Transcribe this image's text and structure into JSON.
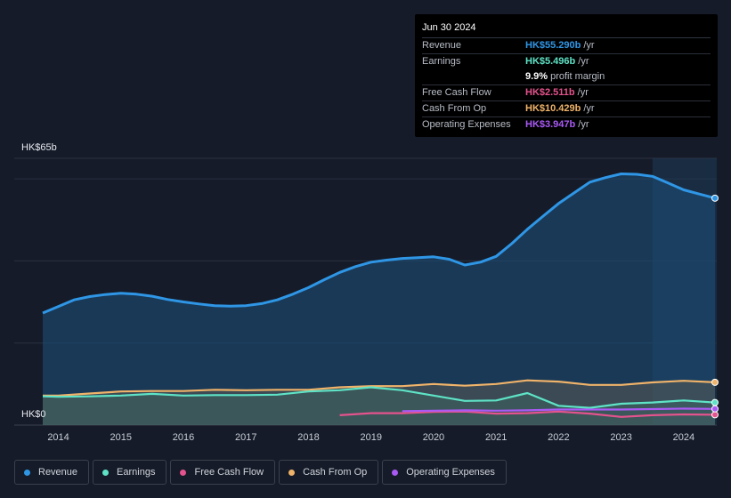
{
  "tooltip": {
    "date": "Jun 30 2024",
    "rows": [
      {
        "label": "Revenue",
        "value": "HK$55.290b",
        "unit": "/yr",
        "color": "#2f96e6"
      },
      {
        "label": "Earnings",
        "value": "HK$5.496b",
        "unit": "/yr",
        "color": "#5ee3c6"
      },
      {
        "margin_value": "9.9%",
        "margin_label": "profit margin"
      },
      {
        "label": "Free Cash Flow",
        "value": "HK$2.511b",
        "unit": "/yr",
        "color": "#e4538d"
      },
      {
        "label": "Cash From Op",
        "value": "HK$10.429b",
        "unit": "/yr",
        "color": "#f0b36a"
      },
      {
        "label": "Operating Expenses",
        "value": "HK$3.947b",
        "unit": "/yr",
        "color": "#a95af5"
      }
    ]
  },
  "legend": [
    {
      "label": "Revenue",
      "color": "#2f96e6"
    },
    {
      "label": "Earnings",
      "color": "#5ee3c6"
    },
    {
      "label": "Free Cash Flow",
      "color": "#e4538d"
    },
    {
      "label": "Cash From Op",
      "color": "#f0b36a"
    },
    {
      "label": "Operating Expenses",
      "color": "#a95af5"
    }
  ],
  "chart_data": {
    "type": "area",
    "ylabel_top": "HK$65b",
    "ylabel_bottom": "HK$0",
    "ylim": [
      0,
      65
    ],
    "xlim": [
      2013.75,
      2024.5
    ],
    "x_ticks": [
      "2014",
      "2015",
      "2016",
      "2017",
      "2018",
      "2019",
      "2020",
      "2021",
      "2022",
      "2023",
      "2024"
    ],
    "highlight_start": 2023.5,
    "series": [
      {
        "name": "Revenue",
        "color": "#2f96e6",
        "points": [
          [
            2013.75,
            27.3
          ],
          [
            2014.0,
            28.9
          ],
          [
            2014.25,
            30.5
          ],
          [
            2014.5,
            31.3
          ],
          [
            2014.75,
            31.8
          ],
          [
            2015.0,
            32.1
          ],
          [
            2015.25,
            31.9
          ],
          [
            2015.5,
            31.4
          ],
          [
            2015.75,
            30.6
          ],
          [
            2016.0,
            30.0
          ],
          [
            2016.25,
            29.5
          ],
          [
            2016.5,
            29.1
          ],
          [
            2016.75,
            29.0
          ],
          [
            2017.0,
            29.1
          ],
          [
            2017.25,
            29.6
          ],
          [
            2017.5,
            30.5
          ],
          [
            2017.75,
            31.9
          ],
          [
            2018.0,
            33.5
          ],
          [
            2018.25,
            35.4
          ],
          [
            2018.5,
            37.2
          ],
          [
            2018.75,
            38.6
          ],
          [
            2019.0,
            39.7
          ],
          [
            2019.25,
            40.2
          ],
          [
            2019.5,
            40.6
          ],
          [
            2019.75,
            40.8
          ],
          [
            2020.0,
            41.0
          ],
          [
            2020.25,
            40.4
          ],
          [
            2020.5,
            39.0
          ],
          [
            2020.75,
            39.7
          ],
          [
            2021.0,
            41.1
          ],
          [
            2021.25,
            44.2
          ],
          [
            2021.5,
            47.7
          ],
          [
            2021.75,
            50.9
          ],
          [
            2022.0,
            54.0
          ],
          [
            2022.25,
            56.6
          ],
          [
            2022.5,
            59.2
          ],
          [
            2022.75,
            60.3
          ],
          [
            2023.0,
            61.2
          ],
          [
            2023.25,
            61.1
          ],
          [
            2023.5,
            60.6
          ],
          [
            2023.75,
            59.0
          ],
          [
            2024.0,
            57.3
          ],
          [
            2024.25,
            56.3
          ],
          [
            2024.5,
            55.29
          ]
        ]
      },
      {
        "name": "Cash From Op",
        "color": "#f0b36a",
        "points": [
          [
            2013.75,
            7.2
          ],
          [
            2014.0,
            7.2
          ],
          [
            2014.5,
            7.7
          ],
          [
            2015.0,
            8.2
          ],
          [
            2015.5,
            8.3
          ],
          [
            2016.0,
            8.3
          ],
          [
            2016.5,
            8.6
          ],
          [
            2017.0,
            8.5
          ],
          [
            2017.5,
            8.6
          ],
          [
            2018.0,
            8.6
          ],
          [
            2018.5,
            9.2
          ],
          [
            2019.0,
            9.5
          ],
          [
            2019.5,
            9.5
          ],
          [
            2020.0,
            10.0
          ],
          [
            2020.5,
            9.6
          ],
          [
            2021.0,
            10.0
          ],
          [
            2021.5,
            10.9
          ],
          [
            2022.0,
            10.6
          ],
          [
            2022.5,
            9.8
          ],
          [
            2023.0,
            9.8
          ],
          [
            2023.5,
            10.4
          ],
          [
            2024.0,
            10.8
          ],
          [
            2024.5,
            10.429
          ]
        ]
      },
      {
        "name": "Earnings",
        "color": "#5ee3c6",
        "points": [
          [
            2013.75,
            7.0
          ],
          [
            2014.0,
            6.9
          ],
          [
            2014.5,
            7.0
          ],
          [
            2015.0,
            7.2
          ],
          [
            2015.5,
            7.6
          ],
          [
            2016.0,
            7.2
          ],
          [
            2016.5,
            7.3
          ],
          [
            2017.0,
            7.3
          ],
          [
            2017.5,
            7.4
          ],
          [
            2018.0,
            8.2
          ],
          [
            2018.5,
            8.5
          ],
          [
            2019.0,
            9.2
          ],
          [
            2019.5,
            8.5
          ],
          [
            2020.0,
            7.2
          ],
          [
            2020.5,
            5.9
          ],
          [
            2021.0,
            6.0
          ],
          [
            2021.5,
            7.8
          ],
          [
            2022.0,
            4.7
          ],
          [
            2022.5,
            4.2
          ],
          [
            2023.0,
            5.2
          ],
          [
            2023.5,
            5.5
          ],
          [
            2024.0,
            6.0
          ],
          [
            2024.5,
            5.496
          ]
        ]
      },
      {
        "name": "Free Cash Flow",
        "color": "#e4538d",
        "points": [
          [
            2018.5,
            2.4
          ],
          [
            2019.0,
            2.9
          ],
          [
            2019.5,
            2.9
          ],
          [
            2020.0,
            3.2
          ],
          [
            2020.5,
            3.3
          ],
          [
            2021.0,
            2.8
          ],
          [
            2021.5,
            2.9
          ],
          [
            2022.0,
            3.3
          ],
          [
            2022.5,
            2.8
          ],
          [
            2023.0,
            2.0
          ],
          [
            2023.5,
            2.4
          ],
          [
            2024.0,
            2.6
          ],
          [
            2024.5,
            2.511
          ]
        ]
      },
      {
        "name": "Operating Expenses",
        "color": "#a95af5",
        "points": [
          [
            2019.5,
            3.4
          ],
          [
            2020.0,
            3.5
          ],
          [
            2020.5,
            3.6
          ],
          [
            2021.0,
            3.5
          ],
          [
            2021.5,
            3.6
          ],
          [
            2022.0,
            3.8
          ],
          [
            2022.5,
            3.8
          ],
          [
            2023.0,
            3.8
          ],
          [
            2023.5,
            3.9
          ],
          [
            2024.0,
            4.0
          ],
          [
            2024.5,
            3.947
          ]
        ]
      }
    ]
  }
}
